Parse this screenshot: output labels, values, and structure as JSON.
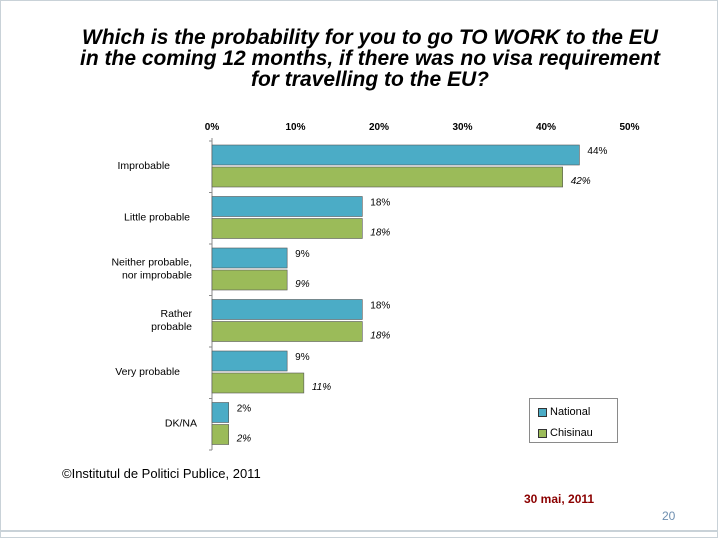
{
  "slide": {
    "title_lines": [
      "Which is the probability for you to go TO WORK to the EU",
      "in the coming 12 months, if there was no visa requirement",
      "for travelling to the EU?"
    ],
    "copyright": "©Institutul de Politici Publice, 2011",
    "date": "30 mai, 2011",
    "page_number": "20"
  },
  "chart_data": {
    "type": "bar",
    "orientation": "horizontal",
    "categories": [
      "Improbable",
      "Little probable",
      "Neither probable, nor improbable",
      "Rather probable",
      "Very probable",
      "DK/NA"
    ],
    "category_lines": [
      [
        "Improbable"
      ],
      [
        "Little probable"
      ],
      [
        "Neither probable,",
        "nor improbable"
      ],
      [
        "Rather",
        "probable"
      ],
      [
        "Very probable"
      ],
      [
        "DK/NA"
      ]
    ],
    "series": [
      {
        "name": "National",
        "values": [
          44,
          18,
          9,
          18,
          9,
          2
        ],
        "labels": [
          "44%",
          "18%",
          "9%",
          "18%",
          "9%",
          "2%"
        ],
        "color": "#4bacc6"
      },
      {
        "name": "Chisinau",
        "values": [
          42,
          18,
          9,
          18,
          11,
          2
        ],
        "labels": [
          "42%",
          "18%",
          "9%",
          "18%",
          "11%",
          "2%"
        ],
        "color": "#9bbb59"
      }
    ],
    "x_ticks": [
      "0%",
      "10%",
      "20%",
      "30%",
      "40%",
      "50%"
    ],
    "xlim": [
      0,
      50
    ],
    "axis_position": "top",
    "grid": false,
    "legend_position": "bottom-right",
    "title": "Which is the probability for you to go TO WORK to the EU in the coming 12 months, if there was no visa requirement for travelling to the EU?",
    "xlabel": "",
    "ylabel": ""
  }
}
